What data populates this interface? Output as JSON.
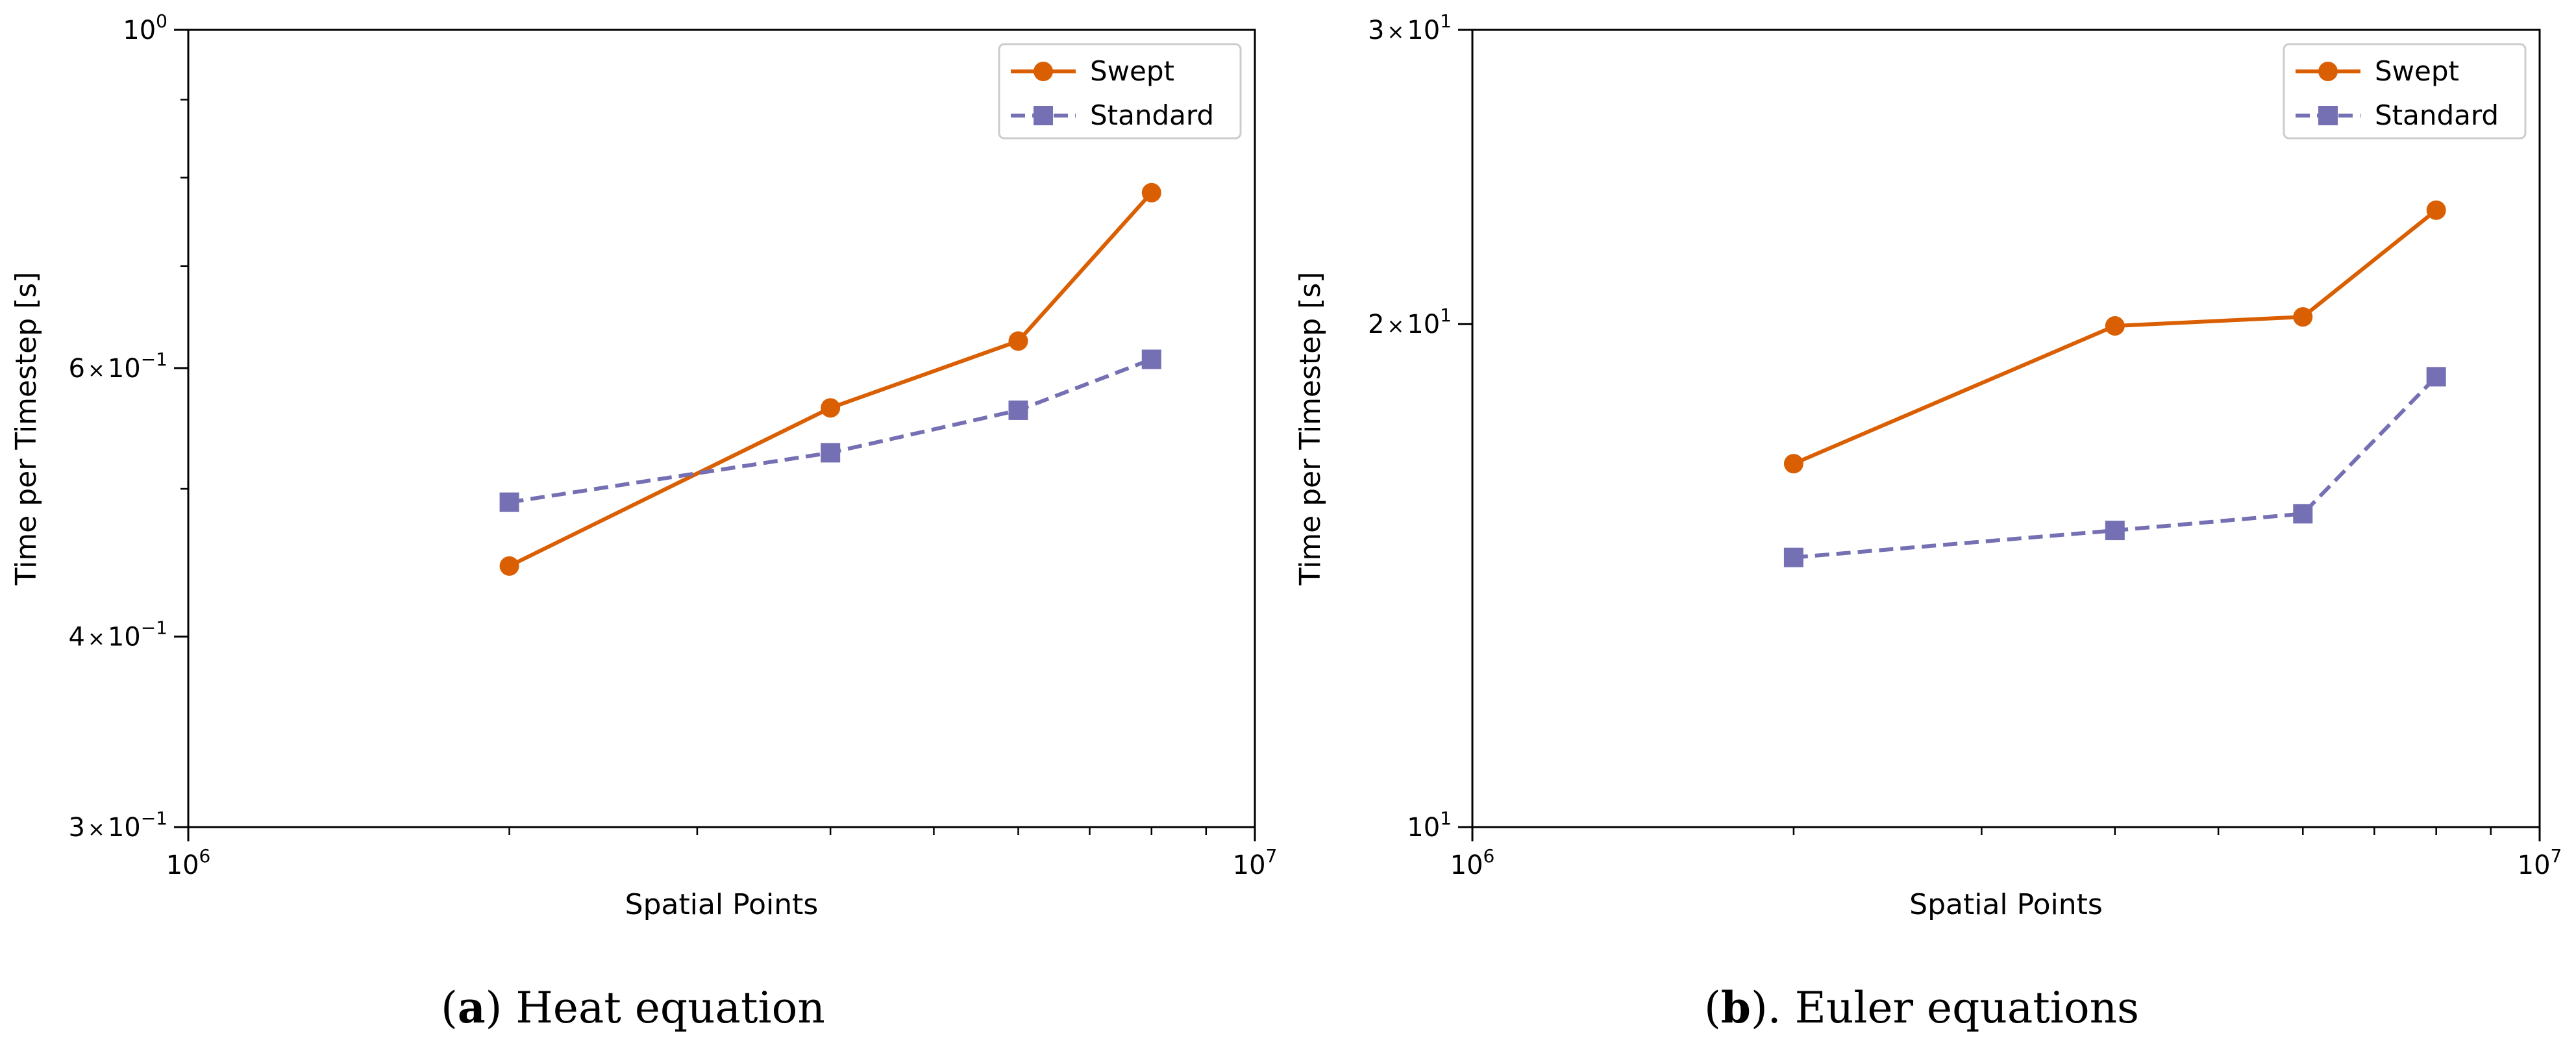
{
  "figure": {
    "panels": [
      {
        "caption_letter": "a",
        "caption_prefix": "(",
        "caption_after_letter": ")",
        "caption_text": " Heat equation"
      },
      {
        "caption_letter": "b",
        "caption_prefix": "(",
        "caption_after_letter": ").",
        "caption_text": " Euler equations"
      }
    ]
  },
  "chart_data": [
    {
      "type": "line",
      "xscale": "log",
      "yscale": "log",
      "xlabel": "Spatial Points",
      "ylabel": "Time per Timestep [s]",
      "xlim": [
        1000000,
        10000000
      ],
      "ylim": [
        0.3,
        1.0
      ],
      "x_tick_labels": [
        {
          "value": 1000000,
          "base": "10",
          "exp": "6"
        },
        {
          "value": 10000000,
          "base": "10",
          "exp": "7"
        }
      ],
      "y_tick_labels": [
        {
          "value": 0.3,
          "mant": "3",
          "base": "10",
          "exp": "−1"
        },
        {
          "value": 0.4,
          "mant": "4",
          "base": "10",
          "exp": "−1"
        },
        {
          "value": 0.6,
          "mant": "6",
          "base": "10",
          "exp": "−1"
        },
        {
          "value": 1.0,
          "mant": "",
          "base": "10",
          "exp": "0"
        }
      ],
      "y_minor_ticks": [
        0.5,
        0.7,
        0.8,
        0.9
      ],
      "legend_position": "top-right",
      "series": [
        {
          "name": "Swept",
          "color": "#d95f02",
          "marker": "circle",
          "dash": "solid",
          "x": [
            2000000,
            4000000,
            6000000,
            8000000
          ],
          "y": [
            0.445,
            0.565,
            0.625,
            0.782
          ]
        },
        {
          "name": "Standard",
          "color": "#7570b3",
          "marker": "square",
          "dash": "dashed",
          "x": [
            2000000,
            4000000,
            6000000,
            8000000
          ],
          "y": [
            0.49,
            0.528,
            0.563,
            0.608
          ]
        }
      ]
    },
    {
      "type": "line",
      "xscale": "log",
      "yscale": "log",
      "xlabel": "Spatial Points",
      "ylabel": "Time per Timestep [s]",
      "xlim": [
        1000000,
        10000000
      ],
      "ylim": [
        10,
        30
      ],
      "x_tick_labels": [
        {
          "value": 1000000,
          "base": "10",
          "exp": "6"
        },
        {
          "value": 10000000,
          "base": "10",
          "exp": "7"
        }
      ],
      "y_tick_labels": [
        {
          "value": 10,
          "mant": "",
          "base": "10",
          "exp": "1"
        },
        {
          "value": 20,
          "mant": "2",
          "base": "10",
          "exp": "1"
        },
        {
          "value": 30,
          "mant": "3",
          "base": "10",
          "exp": "1"
        }
      ],
      "y_minor_ticks": [],
      "legend_position": "top-right",
      "series": [
        {
          "name": "Swept",
          "color": "#d95f02",
          "marker": "circle",
          "dash": "solid",
          "x": [
            2000000,
            4000000,
            6000000,
            8000000
          ],
          "y": [
            16.5,
            19.95,
            20.2,
            23.4
          ]
        },
        {
          "name": "Standard",
          "color": "#7570b3",
          "marker": "square",
          "dash": "dashed",
          "x": [
            2000000,
            4000000,
            6000000,
            8000000
          ],
          "y": [
            14.5,
            15.05,
            15.4,
            18.6
          ]
        }
      ]
    }
  ]
}
